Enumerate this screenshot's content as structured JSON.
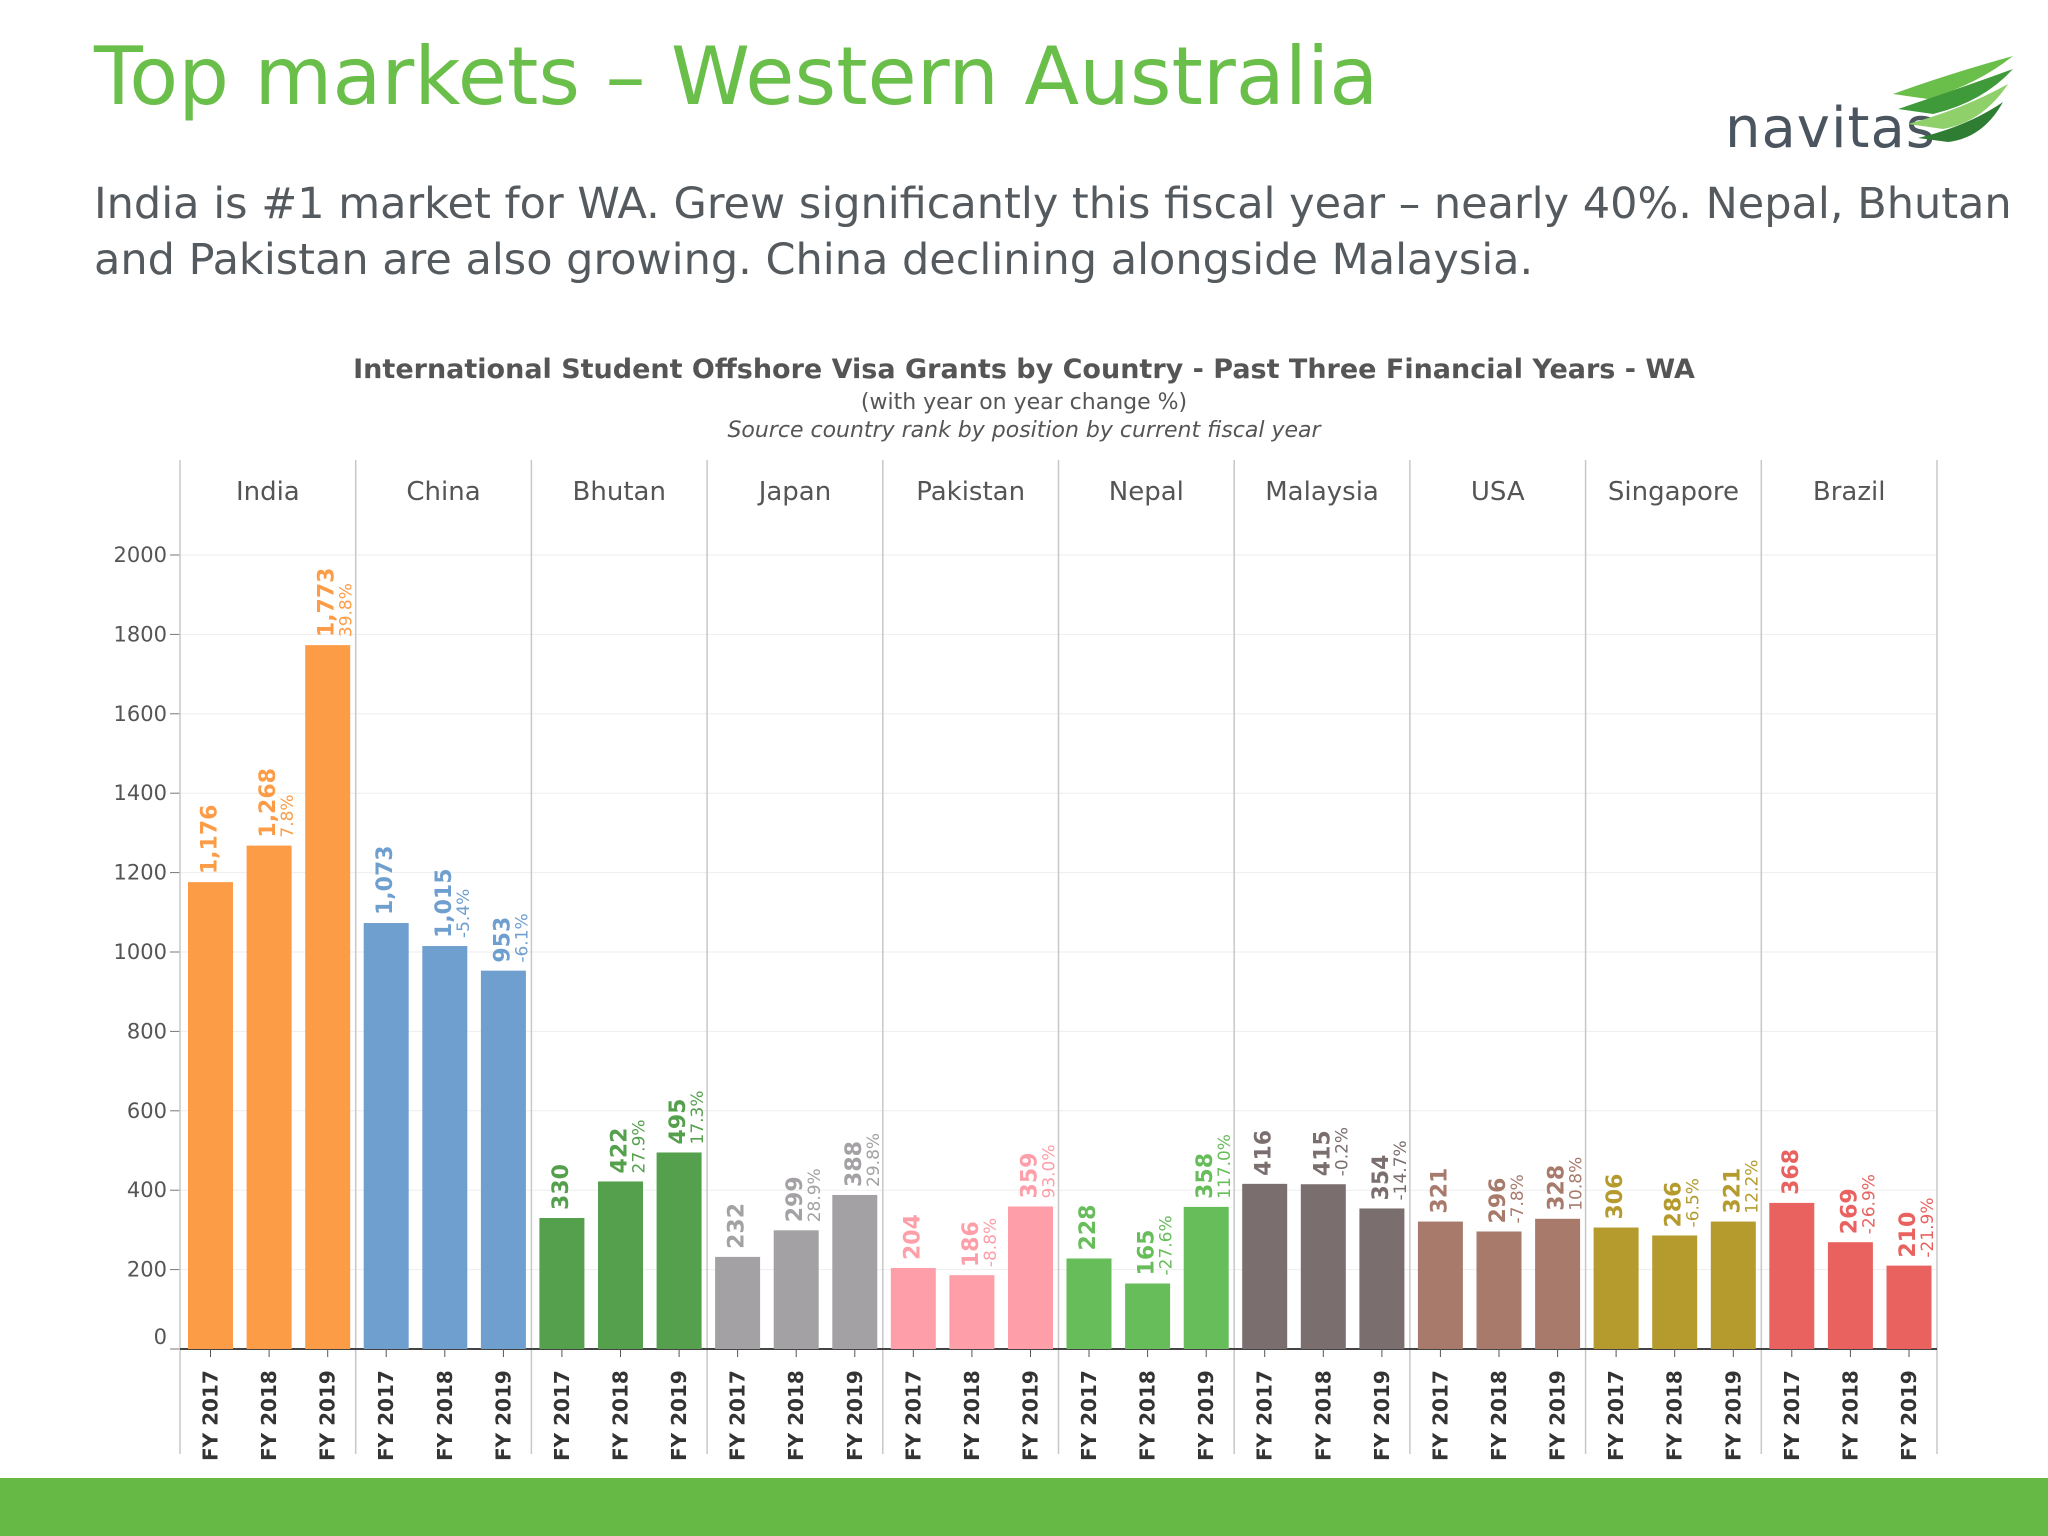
{
  "slide": {
    "title": "Top markets – Western Australia",
    "subtitle": "India is #1 market for WA. Grew significantly this fiscal year – nearly 40%. Nepal, Bhutan and Pakistan are also growing. China declining alongside Malaysia.",
    "logo_text": "navitas"
  },
  "colors": {
    "title_green": "#6abf4b",
    "footer_green": "#67b945",
    "India": "#fd9c47",
    "China": "#6f9fcf",
    "Bhutan": "#55a04d",
    "Japan": "#a3a1a4",
    "Pakistan": "#fe9ea8",
    "Nepal": "#67bd5a",
    "Malaysia": "#7a6e6f",
    "USA": "#a77a6b",
    "Singapore": "#b59a2e",
    "Brazil": "#e9625f"
  },
  "chart_data": {
    "type": "bar",
    "title": "International Student Offshore Visa Grants by Country - Past Three Financial Years - WA",
    "subtitle": "(with year on year change %)",
    "note": "Source country rank by position by current fiscal year",
    "ylim": [
      0,
      2000
    ],
    "yticks": [
      "0",
      "200",
      "400",
      "600",
      "800",
      "1000",
      "1200",
      "1400",
      "1600",
      "1800",
      "2000"
    ],
    "xlabels": [
      "FY 2017",
      "FY 2018",
      "FY 2019"
    ],
    "grid": true,
    "groups": [
      {
        "name": "India",
        "values": [
          1176,
          1268,
          1773
        ],
        "labels": [
          "1,176",
          "1,268",
          "1,773"
        ],
        "changes": [
          "",
          "7.8%",
          "39.8%"
        ]
      },
      {
        "name": "China",
        "values": [
          1073,
          1015,
          953
        ],
        "labels": [
          "1,073",
          "1,015",
          "953"
        ],
        "changes": [
          "",
          "-5.4%",
          "-6.1%"
        ]
      },
      {
        "name": "Bhutan",
        "values": [
          330,
          422,
          495
        ],
        "labels": [
          "330",
          "422",
          "495"
        ],
        "changes": [
          "",
          "27.9%",
          "17.3%"
        ]
      },
      {
        "name": "Japan",
        "values": [
          232,
          299,
          388
        ],
        "labels": [
          "232",
          "299",
          "388"
        ],
        "changes": [
          "",
          "28.9%",
          "29.8%"
        ]
      },
      {
        "name": "Pakistan",
        "values": [
          204,
          186,
          359
        ],
        "labels": [
          "204",
          "186",
          "359"
        ],
        "changes": [
          "",
          "-8.8%",
          "93.0%"
        ]
      },
      {
        "name": "Nepal",
        "values": [
          228,
          165,
          358
        ],
        "labels": [
          "228",
          "165",
          "358"
        ],
        "changes": [
          "",
          "-27.6%",
          "117.0%"
        ]
      },
      {
        "name": "Malaysia",
        "values": [
          416,
          415,
          354
        ],
        "labels": [
          "416",
          "415",
          "354"
        ],
        "changes": [
          "",
          "-0.2%",
          "-14.7%"
        ]
      },
      {
        "name": "USA",
        "values": [
          321,
          296,
          328
        ],
        "labels": [
          "321",
          "296",
          "328"
        ],
        "changes": [
          "",
          "-7.8%",
          "10.8%"
        ]
      },
      {
        "name": "Singapore",
        "values": [
          306,
          286,
          321
        ],
        "labels": [
          "306",
          "286",
          "321"
        ],
        "changes": [
          "",
          "-6.5%",
          "12.2%"
        ]
      },
      {
        "name": "Brazil",
        "values": [
          368,
          269,
          210
        ],
        "labels": [
          "368",
          "269",
          "210"
        ],
        "changes": [
          "",
          "-26.9%",
          "-21.9%"
        ]
      }
    ]
  }
}
